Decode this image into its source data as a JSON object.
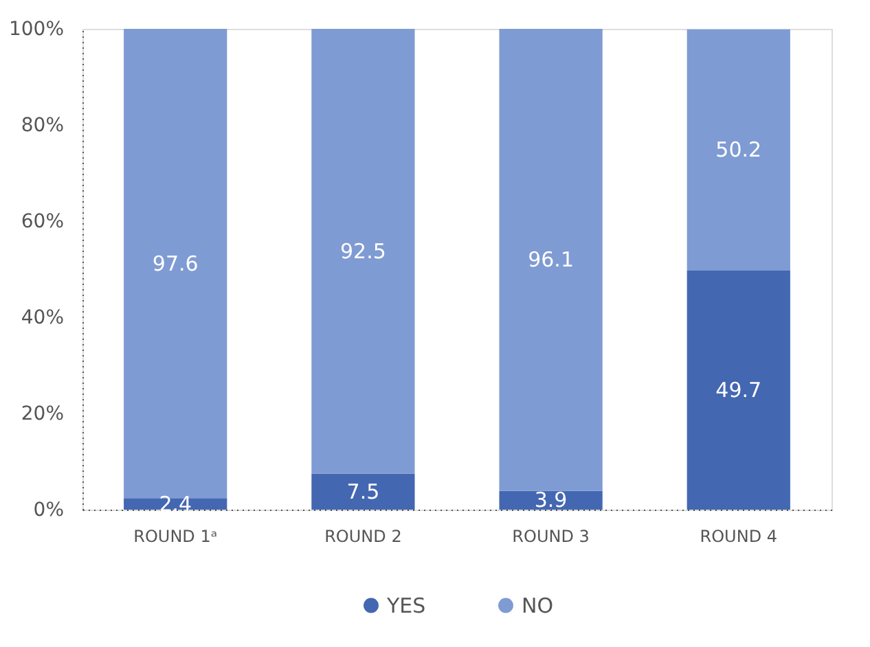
{
  "chart_data": {
    "type": "bar",
    "stacked": true,
    "categories": [
      "ROUND 1ᵃ",
      "ROUND 2",
      "ROUND 3",
      "ROUND 4"
    ],
    "series": [
      {
        "name": "YES",
        "color": "#4467b2",
        "values": [
          2.4,
          7.5,
          3.9,
          49.7
        ]
      },
      {
        "name": "NO",
        "color": "#7f9bd3",
        "values": [
          97.6,
          92.5,
          96.1,
          50.2
        ]
      }
    ],
    "ylim": [
      0,
      100
    ],
    "yticks": [
      {
        "value": 0,
        "label": "0%"
      },
      {
        "value": 20,
        "label": "20%"
      },
      {
        "value": 40,
        "label": "40%"
      },
      {
        "value": 60,
        "label": "60%"
      },
      {
        "value": 80,
        "label": "80%"
      },
      {
        "value": 100,
        "label": "100%"
      }
    ],
    "data_labels": true,
    "legend": "bottom",
    "grid": false
  }
}
